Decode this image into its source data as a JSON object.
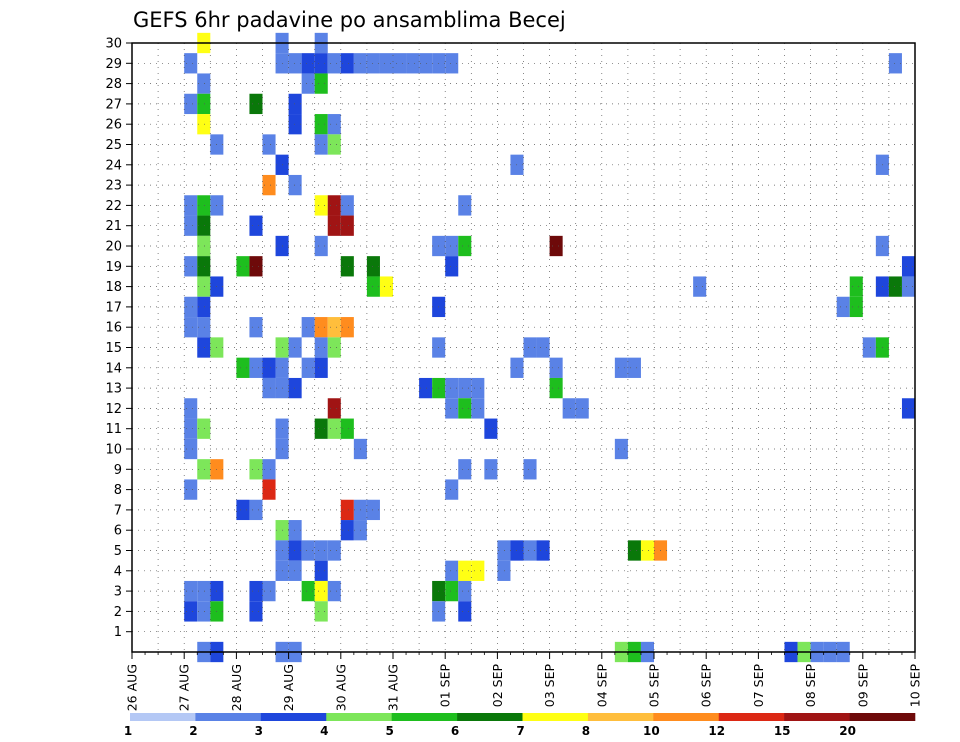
{
  "chart_data": {
    "type": "heatmap",
    "title": "GEFS 6hr padavine po ansamblima Becej",
    "x_ticks": [
      "26 AUG",
      "27 AUG",
      "28 AUG",
      "29 AUG",
      "30 AUG",
      "31 AUG",
      "01 SEP",
      "02 SEP",
      "03 SEP",
      "04 SEP",
      "05 SEP",
      "06 SEP",
      "07 SEP",
      "08 SEP",
      "09 SEP",
      "10 SEP"
    ],
    "x_range": [
      "26 AUG 00Z",
      "10 SEP 00Z"
    ],
    "y_ticks": [
      1,
      2,
      3,
      4,
      5,
      6,
      7,
      8,
      9,
      10,
      11,
      12,
      13,
      14,
      15,
      16,
      17,
      18,
      19,
      20,
      21,
      22,
      23,
      24,
      25,
      26,
      27,
      28,
      29,
      30
    ],
    "y_range": [
      0,
      30
    ],
    "grid": true,
    "colorbar": {
      "labels": [
        "1",
        "2",
        "3",
        "4",
        "5",
        "6",
        "7",
        "8",
        "10",
        "12",
        "15",
        "20"
      ],
      "colors": [
        "#b4c8f5",
        "#5a82e6",
        "#1e46dc",
        "#7de65a",
        "#1ebe1e",
        "#0a780a",
        "#ffff14",
        "#ffbe3c",
        "#ff8c1e",
        "#dc2814",
        "#a01414",
        "#6e0a0a"
      ]
    },
    "cells": [
      {
        "member": 30,
        "values": [
          [
            27.25,
            6
          ],
          [
            28.75,
            1
          ],
          [
            29.5,
            1
          ]
        ]
      },
      {
        "member": 29,
        "values": [
          [
            27.0,
            1
          ],
          [
            28.75,
            1
          ],
          [
            29.0,
            1
          ],
          [
            29.25,
            2
          ],
          [
            29.5,
            2
          ],
          [
            29.75,
            1
          ],
          [
            30.0,
            2
          ],
          [
            30.25,
            1
          ],
          [
            30.5,
            1
          ],
          [
            30.75,
            1
          ],
          [
            31.0,
            1
          ],
          [
            31.25,
            1
          ],
          [
            31.5,
            1
          ],
          [
            31.75,
            1
          ],
          [
            32.0,
            1
          ],
          [
            40.5,
            1
          ],
          [
            41.25,
            4
          ],
          [
            41.5,
            3
          ],
          [
            41.75,
            5
          ],
          [
            42.5,
            1
          ],
          [
            42.75,
            1
          ]
        ]
      },
      {
        "member": 28,
        "values": [
          [
            27.25,
            1
          ],
          [
            29.25,
            1
          ],
          [
            29.5,
            4
          ]
        ]
      },
      {
        "member": 27,
        "values": [
          [
            27.0,
            1
          ],
          [
            27.25,
            4
          ],
          [
            28.25,
            5
          ],
          [
            29.0,
            2
          ],
          [
            43.75,
            5
          ],
          [
            44.0,
            1
          ],
          [
            44.25,
            1
          ],
          [
            44.5,
            1
          ],
          [
            44.75,
            2
          ],
          [
            45.0,
            14
          ],
          [
            45.25,
            8
          ],
          [
            45.5,
            3
          ]
        ]
      },
      {
        "member": 26,
        "values": [
          [
            27.25,
            6
          ],
          [
            29.0,
            2
          ],
          [
            29.5,
            4
          ],
          [
            29.75,
            1
          ]
        ]
      },
      {
        "member": 25,
        "values": [
          [
            27.5,
            1
          ],
          [
            28.5,
            1
          ],
          [
            29.5,
            1
          ],
          [
            29.75,
            3
          ]
        ]
      },
      {
        "member": 24,
        "values": [
          [
            28.75,
            2
          ],
          [
            33.25,
            1
          ],
          [
            40.25,
            1
          ]
        ]
      },
      {
        "member": 23,
        "values": [
          [
            28.5,
            8
          ],
          [
            29.0,
            1
          ]
        ]
      },
      {
        "member": 22,
        "values": [
          [
            27.0,
            1
          ],
          [
            27.25,
            4
          ],
          [
            27.5,
            1
          ],
          [
            29.5,
            6
          ],
          [
            29.75,
            10
          ],
          [
            30.0,
            1
          ],
          [
            32.25,
            1
          ]
        ]
      },
      {
        "member": 21,
        "values": [
          [
            27.0,
            1
          ],
          [
            27.25,
            5
          ],
          [
            28.25,
            2
          ],
          [
            29.75,
            10
          ],
          [
            30.0,
            10
          ]
        ]
      },
      {
        "member": 20,
        "values": [
          [
            27.25,
            3
          ],
          [
            28.75,
            2
          ],
          [
            29.5,
            1
          ],
          [
            31.75,
            1
          ],
          [
            32.0,
            1
          ],
          [
            32.25,
            4
          ],
          [
            34.0,
            11
          ],
          [
            40.25,
            1
          ],
          [
            44.75,
            1
          ]
        ]
      },
      {
        "member": 19,
        "values": [
          [
            27.0,
            1
          ],
          [
            27.25,
            5
          ],
          [
            28.0,
            4
          ],
          [
            28.25,
            11
          ],
          [
            30.0,
            5
          ],
          [
            30.5,
            5
          ],
          [
            32.0,
            2
          ],
          [
            40.75,
            2
          ],
          [
            41.25,
            10
          ],
          [
            41.5,
            10
          ],
          [
            41.75,
            3
          ],
          [
            42.0,
            2
          ],
          [
            42.75,
            1
          ],
          [
            43.0,
            5
          ]
        ]
      },
      {
        "member": 18,
        "values": [
          [
            27.25,
            3
          ],
          [
            27.5,
            2
          ],
          [
            30.5,
            4
          ],
          [
            30.75,
            6
          ],
          [
            36.75,
            1
          ],
          [
            39.75,
            4
          ],
          [
            40.25,
            2
          ],
          [
            40.5,
            5
          ],
          [
            40.75,
            1
          ]
        ]
      },
      {
        "member": 17,
        "values": [
          [
            27.0,
            1
          ],
          [
            27.25,
            2
          ],
          [
            31.75,
            2
          ],
          [
            39.5,
            1
          ],
          [
            39.75,
            4
          ]
        ]
      },
      {
        "member": 16,
        "values": [
          [
            27.0,
            1
          ],
          [
            27.25,
            1
          ],
          [
            28.25,
            1
          ],
          [
            29.25,
            1
          ],
          [
            29.5,
            8
          ],
          [
            29.75,
            7
          ],
          [
            30.0,
            8
          ]
        ]
      },
      {
        "member": 15,
        "values": [
          [
            27.25,
            2
          ],
          [
            27.5,
            3
          ],
          [
            28.75,
            3
          ],
          [
            29.0,
            1
          ],
          [
            29.5,
            1
          ],
          [
            29.75,
            3
          ],
          [
            31.75,
            1
          ],
          [
            33.5,
            1
          ],
          [
            33.75,
            1
          ],
          [
            40.0,
            1
          ],
          [
            40.25,
            4
          ]
        ]
      },
      {
        "member": 14,
        "values": [
          [
            28.0,
            4
          ],
          [
            28.25,
            1
          ],
          [
            28.5,
            2
          ],
          [
            28.75,
            1
          ],
          [
            29.25,
            1
          ],
          [
            29.5,
            2
          ],
          [
            33.25,
            1
          ],
          [
            34.0,
            1
          ],
          [
            35.25,
            1
          ],
          [
            35.5,
            1
          ]
        ]
      },
      {
        "member": 13,
        "values": [
          [
            28.5,
            1
          ],
          [
            28.75,
            1
          ],
          [
            29.0,
            2
          ],
          [
            31.5,
            2
          ],
          [
            31.75,
            4
          ],
          [
            32.0,
            1
          ],
          [
            32.25,
            1
          ],
          [
            32.5,
            1
          ],
          [
            34.0,
            4
          ]
        ]
      },
      {
        "member": 12,
        "values": [
          [
            27.0,
            1
          ],
          [
            29.75,
            10
          ],
          [
            32.0,
            1
          ],
          [
            32.25,
            4
          ],
          [
            32.5,
            1
          ],
          [
            34.25,
            1
          ],
          [
            34.5,
            1
          ],
          [
            40.75,
            2
          ],
          [
            41.0,
            1
          ],
          [
            41.25,
            2
          ],
          [
            41.5,
            5
          ],
          [
            41.75,
            6
          ],
          [
            42.0,
            3
          ],
          [
            42.5,
            4
          ],
          [
            42.75,
            2
          ],
          [
            43.0,
            1
          ]
        ]
      },
      {
        "member": 11,
        "values": [
          [
            27.0,
            1
          ],
          [
            27.25,
            3
          ],
          [
            28.75,
            1
          ],
          [
            29.5,
            5
          ],
          [
            29.75,
            3
          ],
          [
            30.0,
            4
          ],
          [
            32.75,
            2
          ]
        ]
      },
      {
        "member": 10,
        "values": [
          [
            27.0,
            1
          ],
          [
            28.75,
            1
          ],
          [
            30.25,
            1
          ],
          [
            35.25,
            1
          ]
        ]
      },
      {
        "member": 9,
        "values": [
          [
            27.25,
            3
          ],
          [
            27.5,
            8
          ],
          [
            28.25,
            3
          ],
          [
            28.5,
            1
          ],
          [
            32.25,
            1
          ],
          [
            32.75,
            1
          ],
          [
            33.5,
            1
          ],
          [
            43.25,
            8
          ],
          [
            43.5,
            4
          ],
          [
            44.25,
            1
          ],
          [
            45.0,
            1
          ]
        ]
      },
      {
        "member": 8,
        "values": [
          [
            27.0,
            1
          ],
          [
            28.5,
            9
          ],
          [
            32.0,
            1
          ]
        ]
      },
      {
        "member": 7,
        "values": [
          [
            28.0,
            2
          ],
          [
            28.25,
            1
          ],
          [
            30.0,
            9
          ],
          [
            30.25,
            1
          ],
          [
            30.5,
            1
          ],
          [
            43.5,
            1
          ],
          [
            43.75,
            2
          ],
          [
            44.0,
            4
          ],
          [
            44.25,
            1
          ],
          [
            44.5,
            8
          ],
          [
            44.75,
            3
          ],
          [
            45.0,
            2
          ]
        ]
      },
      {
        "member": 6,
        "values": [
          [
            28.75,
            3
          ],
          [
            29.0,
            1
          ],
          [
            30.0,
            2
          ],
          [
            30.25,
            1
          ]
        ]
      },
      {
        "member": 5,
        "values": [
          [
            28.75,
            1
          ],
          [
            29.0,
            2
          ],
          [
            29.25,
            1
          ],
          [
            29.5,
            1
          ],
          [
            29.75,
            1
          ],
          [
            33.0,
            1
          ],
          [
            33.25,
            2
          ],
          [
            33.5,
            1
          ],
          [
            33.75,
            2
          ],
          [
            35.5,
            5
          ],
          [
            35.75,
            6
          ],
          [
            36.0,
            8
          ]
        ]
      },
      {
        "member": 4,
        "values": [
          [
            28.75,
            1
          ],
          [
            29.0,
            1
          ],
          [
            29.5,
            2
          ],
          [
            32.0,
            1
          ],
          [
            32.25,
            6
          ],
          [
            32.5,
            6
          ],
          [
            33.0,
            1
          ],
          [
            44.25,
            3
          ],
          [
            44.5,
            5
          ],
          [
            44.75,
            4
          ],
          [
            45.0,
            1
          ]
        ]
      },
      {
        "member": 3,
        "values": [
          [
            27.0,
            1
          ],
          [
            27.25,
            1
          ],
          [
            27.5,
            2
          ],
          [
            28.25,
            2
          ],
          [
            28.5,
            1
          ],
          [
            29.25,
            4
          ],
          [
            29.5,
            6
          ],
          [
            29.75,
            1
          ],
          [
            31.75,
            5
          ],
          [
            32.0,
            4
          ],
          [
            32.25,
            1
          ],
          [
            42.0,
            1
          ]
        ]
      },
      {
        "member": 2,
        "values": [
          [
            27.0,
            2
          ],
          [
            27.25,
            1
          ],
          [
            27.5,
            4
          ],
          [
            28.25,
            2
          ],
          [
            29.5,
            3
          ],
          [
            31.75,
            1
          ],
          [
            32.25,
            2
          ]
        ]
      },
      {
        "member": 0,
        "values": [
          [
            27.25,
            1
          ],
          [
            27.5,
            2
          ],
          [
            28.75,
            1
          ],
          [
            29.0,
            1
          ],
          [
            35.25,
            3
          ],
          [
            35.5,
            4
          ],
          [
            35.75,
            1
          ],
          [
            38.5,
            2
          ],
          [
            38.75,
            3
          ],
          [
            39.0,
            1
          ],
          [
            39.25,
            1
          ],
          [
            39.5,
            1
          ]
        ]
      }
    ]
  }
}
